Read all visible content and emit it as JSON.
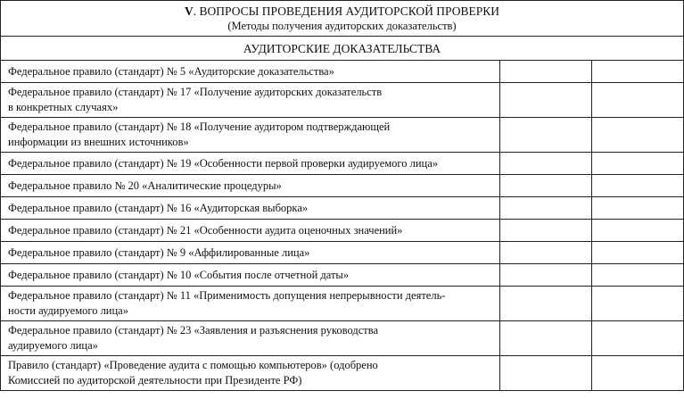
{
  "header": {
    "title_num": "V",
    "title": ". ВОПРОСЫ ПРОВЕДЕНИЯ АУДИТОРСКОЙ ПРОВЕРКИ",
    "subtitle": "(Методы получения аудиторских доказательств)",
    "section": "АУДИТОРСКИЕ ДОКАЗАТЕЛЬСТВА"
  },
  "rows": [
    {
      "lines": [
        "Федеральное правило (стандарт) № 5 «Аудиторские доказательства»"
      ]
    },
    {
      "lines": [
        "Федеральное правило (стандарт) № 17 «Получение аудиторских доказательств",
        "в конкретных случаях»"
      ]
    },
    {
      "lines": [
        "Федеральное правило (стандарт) № 18 «Получение аудитором подтверждающей",
        "информации из внешних источников»"
      ]
    },
    {
      "lines": [
        "Федеральное правило (стандарт) № 19 «Особенности первой проверки аудируемого лица»"
      ]
    },
    {
      "lines": [
        "Федеральное правило № 20 «Аналитические процедуры»"
      ]
    },
    {
      "lines": [
        "Федеральное правило (стандарт) № 16 «Аудиторская выборка»"
      ]
    },
    {
      "lines": [
        "Федеральное правило (стандарт) № 21 «Особенности аудита оценочных значений»"
      ]
    },
    {
      "lines": [
        "Федеральное правило (стандарт) № 9 «Аффилированные лица»"
      ]
    },
    {
      "lines": [
        "Федеральное правило (стандарт) № 10 «События после отчетной даты»"
      ]
    },
    {
      "lines": [
        "Федеральное правило (стандарт) № 11 «Применимость допущения непрерывности деятель-",
        "ности аудируемого лица»"
      ]
    },
    {
      "lines": [
        "Федеральное правило (стандарт) № 23 «Заявления и разъяснения руководства",
        "аудируемого лица»"
      ]
    },
    {
      "lines": [
        "Правило (стандарт) «Проведение аудита с помощью компьютеров» (одобрено",
        "Комиссией по аудиторской деятельности при Президенте РФ)"
      ]
    }
  ]
}
